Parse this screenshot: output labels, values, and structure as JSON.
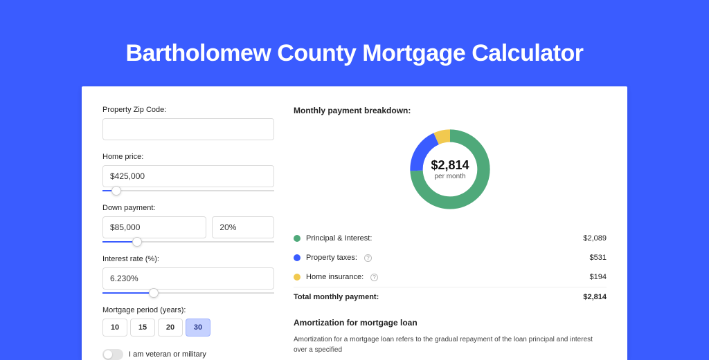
{
  "title": "Bartholomew County Mortgage Calculator",
  "colors": {
    "page_bg": "#3a5cff",
    "card_bg": "#ffffff",
    "accent": "#3a5cff",
    "pi": "#4fa97a",
    "tax": "#3a5cff",
    "ins": "#f1c94f"
  },
  "form": {
    "zip_label": "Property Zip Code:",
    "zip_value": "",
    "home_price_label": "Home price:",
    "home_price_value": "$425,000",
    "home_price_slider_pct": 8,
    "down_payment_label": "Down payment:",
    "down_payment_value": "$85,000",
    "down_payment_pct": "20%",
    "down_payment_slider_pct": 20,
    "interest_label": "Interest rate (%):",
    "interest_value": "6.230%",
    "interest_slider_pct": 30,
    "period_label": "Mortgage period (years):",
    "period_options": [
      "10",
      "15",
      "20",
      "30"
    ],
    "period_selected": "30",
    "veteran_label": "I am veteran or military"
  },
  "breakdown": {
    "title": "Monthly payment breakdown:",
    "center_amount": "$2,814",
    "center_sub": "per month",
    "segments": [
      {
        "key": "pi",
        "label": "Principal & Interest:",
        "value": "$2,089",
        "color": "#4fa97a",
        "pct": 74.2,
        "help": false
      },
      {
        "key": "tax",
        "label": "Property taxes:",
        "value": "$531",
        "color": "#3a5cff",
        "pct": 18.9,
        "help": true
      },
      {
        "key": "ins",
        "label": "Home insurance:",
        "value": "$194",
        "color": "#f1c94f",
        "pct": 6.9,
        "help": true
      }
    ],
    "total_label": "Total monthly payment:",
    "total_value": "$2,814"
  },
  "amort": {
    "title": "Amortization for mortgage loan",
    "text": "Amortization for a mortgage loan refers to the gradual repayment of the loan principal and interest over a specified"
  }
}
